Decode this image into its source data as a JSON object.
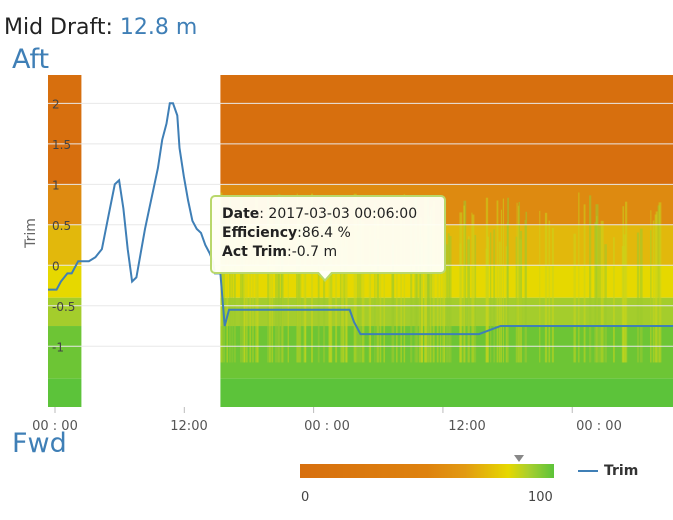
{
  "header": {
    "mid_draft_label": "Mid Draft:",
    "mid_draft_value": "12.8 m"
  },
  "labels": {
    "aft": "Aft",
    "fwd": "Fwd"
  },
  "tooltip": {
    "date_label": "Date",
    "date_value": ": 2017-03-03 00:06:00",
    "eff_label": "Efficiency",
    "eff_value": ":86.4 %",
    "trim_label": "Act Trim",
    "trim_value": ":-0.7 m"
  },
  "colorbar": {
    "min": "0",
    "max": "100",
    "marker_value": 86.4
  },
  "colors": {
    "line": "#3f7fb6",
    "orange": "#d76f0e",
    "yellow": "#e6d800",
    "green": "#5cc33a",
    "tooltip_border": "#b9d86c"
  },
  "chart_data": {
    "type": "line",
    "ylabel": "Trim",
    "y_ticks": [
      "2",
      "1.5",
      "1",
      "0.5",
      "0",
      "-0.5",
      "-1"
    ],
    "x_ticks": [
      "00 : 00",
      "12:00",
      "00 : 00",
      "12:00",
      "00 : 00"
    ],
    "ylim": [
      -1.75,
      2.35
    ],
    "xlim": [
      0,
      58
    ],
    "heatmap_coverage": [
      [
        0,
        3.1
      ],
      [
        16,
        58
      ]
    ],
    "series": [
      {
        "name": "Trim",
        "x": [
          0,
          0.8,
          1.2,
          1.8,
          2.2,
          2.8,
          3.2,
          3.6,
          3.8,
          4.4,
          5.0,
          5.6,
          6.2,
          6.6,
          7.0,
          7.4,
          7.8,
          8.2,
          8.6,
          9.0,
          9.4,
          9.8,
          10.2,
          10.6,
          11.0,
          11.3,
          11.6,
          12.0,
          12.2,
          12.6,
          13.0,
          13.4,
          13.8,
          14.2,
          14.6,
          15.0,
          15.3,
          15.5,
          15.8,
          16.0,
          16.4,
          16.8,
          17.2,
          18.0,
          19.0,
          20.0,
          21.0,
          22.0,
          24.0,
          26.0,
          28.0,
          28.4,
          29.0,
          30.0,
          32.0,
          34.0,
          36.0,
          38.0,
          40.0,
          42.0,
          44.0,
          46.0,
          48.0,
          50.0,
          52.0,
          54.0,
          56.0,
          58.0
        ],
        "y": [
          -0.3,
          -0.3,
          -0.2,
          -0.1,
          -0.1,
          0.05,
          0.05,
          0.05,
          0.05,
          0.1,
          0.2,
          0.6,
          1.0,
          1.05,
          0.7,
          0.2,
          -0.2,
          -0.15,
          0.15,
          0.45,
          0.7,
          0.95,
          1.2,
          1.55,
          1.75,
          2.0,
          2.0,
          1.85,
          1.45,
          1.1,
          0.8,
          0.55,
          0.45,
          0.4,
          0.25,
          0.15,
          0.05,
          -0.1,
          -0.1,
          -0.1,
          -0.75,
          -0.55,
          -0.55,
          -0.55,
          -0.55,
          -0.55,
          -0.55,
          -0.55,
          -0.55,
          -0.55,
          -0.55,
          -0.7,
          -0.85,
          -0.85,
          -0.85,
          -0.85,
          -0.85,
          -0.85,
          -0.85,
          -0.75,
          -0.75,
          -0.75,
          -0.75,
          -0.75,
          -0.75,
          -0.75,
          -0.75,
          -0.75
        ]
      }
    ],
    "legend": "bottom-right",
    "grid": true
  }
}
